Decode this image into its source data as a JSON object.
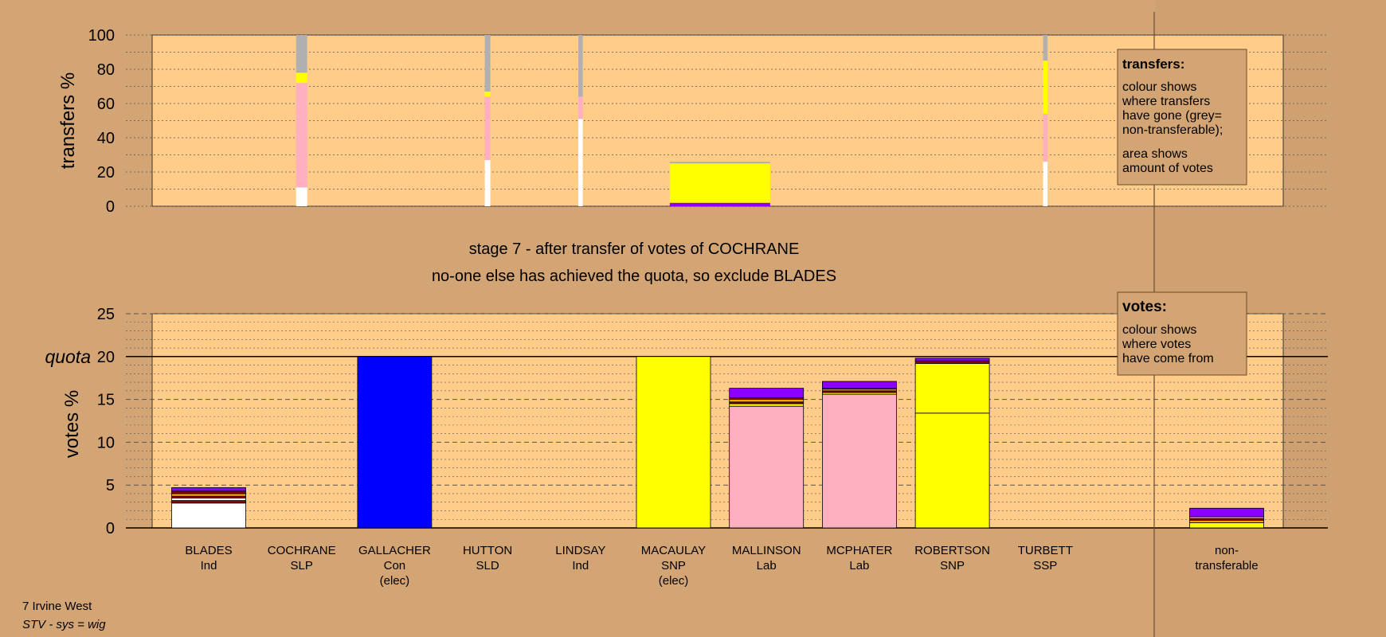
{
  "colors": {
    "background": "#d4a574",
    "plot_area": "#ffcc8a",
    "legend_bg": "#d4a574",
    "Ind": "#ffffff",
    "SLP": "#8b0000",
    "Con": "#0000ff",
    "SLD": "#ffa500",
    "SNP": "#ffff00",
    "Lab": "#ffb0c0",
    "SSP": "#8b0000",
    "purple": "#8b00ff",
    "nontransferable": "#b0b0b0"
  },
  "captions": {
    "line1": "stage 7 - after transfer of votes of COCHRANE",
    "line2": "no-one else has achieved the quota, so exclude BLADES"
  },
  "footer": {
    "ward": "7 Irvine West",
    "system": "STV - sys = wig"
  },
  "legend_transfers": {
    "title": "transfers:",
    "lines1": [
      "colour shows",
      "where transfers",
      "have gone (grey=",
      "non-transferable);"
    ],
    "lines2": [
      "area shows",
      "amount of votes"
    ]
  },
  "legend_votes": {
    "title": "votes:",
    "lines": [
      "colour shows",
      "where votes",
      "have come from"
    ]
  },
  "chart_data": [
    {
      "type": "bar",
      "title": "transfers",
      "ylabel": "transfers %",
      "ylim": [
        0,
        100
      ],
      "yticks": [
        0,
        20,
        40,
        60,
        80,
        100
      ],
      "grid": true,
      "note": "stacked transfer shares; width = amount of votes",
      "bars": [
        {
          "candidate": "COCHRANE",
          "segments": [
            {
              "party": "Ind",
              "from": 0,
              "to": 11
            },
            {
              "party": "Lab",
              "from": 11,
              "to": 72
            },
            {
              "party": "SNP",
              "from": 72,
              "to": 78
            },
            {
              "party": "nontransferable",
              "from": 78,
              "to": 100
            }
          ],
          "weight": 1
        },
        {
          "candidate": "HUTTON",
          "segments": [
            {
              "party": "Ind",
              "from": 0,
              "to": 27
            },
            {
              "party": "Lab",
              "from": 27,
              "to": 64
            },
            {
              "party": "SNP",
              "from": 64,
              "to": 67
            },
            {
              "party": "nontransferable",
              "from": 67,
              "to": 100
            }
          ],
          "weight": 0.5
        },
        {
          "candidate": "LINDSAY",
          "segments": [
            {
              "party": "Ind",
              "from": 0,
              "to": 51
            },
            {
              "party": "Lab",
              "from": 51,
              "to": 64
            },
            {
              "party": "nontransferable",
              "from": 64,
              "to": 100
            }
          ],
          "weight": 0.4
        },
        {
          "candidate": "MACAULAY",
          "segments": [
            {
              "party": "purple",
              "from": 0,
              "to": 2
            },
            {
              "party": "SNP",
              "from": 2,
              "to": 25
            },
            {
              "party": "nontransferable",
              "from": 25,
              "to": 26
            }
          ],
          "weight": 9,
          "offset": 0.5
        },
        {
          "candidate": "TURBETT",
          "segments": [
            {
              "party": "Ind",
              "from": 0,
              "to": 26
            },
            {
              "party": "Lab",
              "from": 26,
              "to": 54
            },
            {
              "party": "SNP",
              "from": 54,
              "to": 85
            },
            {
              "party": "nontransferable",
              "from": 85,
              "to": 100
            }
          ],
          "weight": 0.4
        }
      ]
    },
    {
      "type": "bar",
      "title": "votes",
      "ylabel": "votes %",
      "ylim": [
        0,
        25
      ],
      "yticks": [
        0,
        5,
        10,
        15,
        20,
        25
      ],
      "quota": 20,
      "quota_label": "quota",
      "grid": true,
      "categories": [
        {
          "name": "BLADES",
          "party": "Ind",
          "status": ""
        },
        {
          "name": "COCHRANE",
          "party": "SLP",
          "status": ""
        },
        {
          "name": "GALLACHER",
          "party": "Con",
          "status": "(elec)"
        },
        {
          "name": "HUTTON",
          "party": "SLD",
          "status": ""
        },
        {
          "name": "LINDSAY",
          "party": "Ind",
          "status": ""
        },
        {
          "name": "MACAULAY",
          "party": "SNP",
          "status": "(elec)"
        },
        {
          "name": "MALLINSON",
          "party": "Lab",
          "status": ""
        },
        {
          "name": "MCPHATER",
          "party": "Lab",
          "status": ""
        },
        {
          "name": "ROBERTSON",
          "party": "SNP",
          "status": ""
        },
        {
          "name": "TURBETT",
          "party": "SSP",
          "status": ""
        }
      ],
      "nontransferable_label": [
        "non-",
        "transferable"
      ],
      "stacks": [
        [
          {
            "party": "Ind",
            "value": 2.9
          },
          {
            "party": "SLP",
            "value": 0.3
          },
          {
            "party": "Ind",
            "value": 0.3
          },
          {
            "party": "SLP",
            "value": 0.2
          },
          {
            "party": "SLD",
            "value": 0.3
          },
          {
            "party": "SSP",
            "value": 0.3
          },
          {
            "party": "purple",
            "value": 0.4
          }
        ],
        [],
        [
          {
            "party": "Con",
            "value": 20
          }
        ],
        [],
        [],
        [
          {
            "party": "SNP",
            "value": 20
          }
        ],
        [
          {
            "party": "Lab",
            "value": 14.2
          },
          {
            "party": "SNP",
            "value": 0.3
          },
          {
            "party": "SLP",
            "value": 0.2
          },
          {
            "party": "SLD",
            "value": 0.3
          },
          {
            "party": "SSP",
            "value": 0.2
          },
          {
            "party": "purple",
            "value": 1.1
          }
        ],
        [
          {
            "party": "Lab",
            "value": 15.6
          },
          {
            "party": "SNP",
            "value": 0.2
          },
          {
            "party": "SLP",
            "value": 0.2
          },
          {
            "party": "SLD",
            "value": 0.2
          },
          {
            "party": "SSP",
            "value": 0.1
          },
          {
            "party": "purple",
            "value": 0.8
          }
        ],
        [
          {
            "party": "SNP",
            "value": 13.4
          },
          {
            "party": "SNP",
            "value": 5.8
          },
          {
            "party": "SSP",
            "value": 0.3
          },
          {
            "party": "purple",
            "value": 0.3
          }
        ],
        []
      ],
      "nontransferable_stack": [
        {
          "party": "SNP",
          "value": 0.6
        },
        {
          "party": "SLD",
          "value": 0.3
        },
        {
          "party": "SLP",
          "value": 0.2
        },
        {
          "party": "Lab",
          "value": 0.2
        },
        {
          "party": "purple",
          "value": 1.0
        }
      ]
    }
  ]
}
